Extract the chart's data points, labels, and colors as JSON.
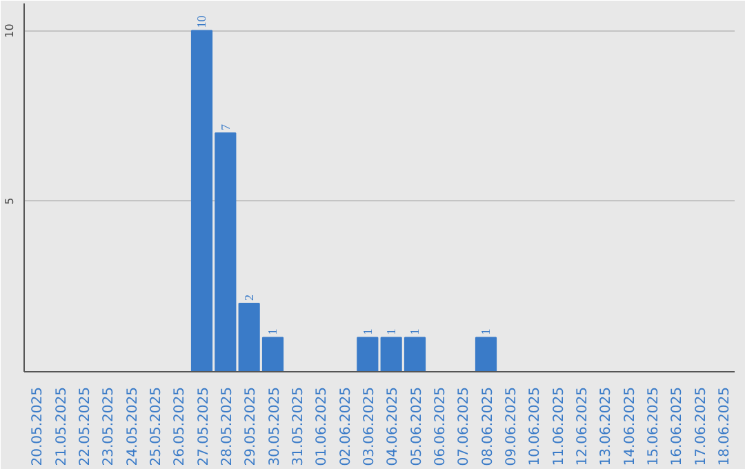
{
  "chart_data": {
    "type": "bar",
    "categories": [
      "20.05.2025",
      "21.05.2025",
      "22.05.2025",
      "23.05.2025",
      "24.05.2025",
      "25.05.2025",
      "26.05.2025",
      "27.05.2025",
      "28.05.2025",
      "29.05.2025",
      "30.05.2025",
      "31.05.2025",
      "01.06.2025",
      "02.06.2025",
      "03.06.2025",
      "04.06.2025",
      "05.06.2025",
      "06.06.2025",
      "07.06.2025",
      "08.06.2025",
      "09.06.2025",
      "10.06.2025",
      "11.06.2025",
      "12.06.2025",
      "13.06.2025",
      "14.06.2025",
      "15.06.2025",
      "16.06.2025",
      "17.06.2025",
      "18.06.2025"
    ],
    "values": [
      0,
      0,
      0,
      0,
      0,
      0,
      0,
      10,
      7,
      2,
      1,
      0,
      0,
      0,
      1,
      1,
      1,
      0,
      0,
      1,
      0,
      0,
      0,
      0,
      0,
      0,
      0,
      0,
      0,
      0
    ],
    "value_labels": [
      null,
      null,
      null,
      null,
      null,
      null,
      null,
      "10",
      "7",
      "2",
      "1",
      null,
      null,
      null,
      "1",
      "1",
      "1",
      null,
      null,
      "1",
      null,
      null,
      null,
      null,
      null,
      null,
      null,
      null,
      null,
      null
    ],
    "color": "#3a7bc8",
    "ylim": [
      0,
      10.8
    ],
    "yticks": [
      5,
      10
    ],
    "grid": "y"
  }
}
